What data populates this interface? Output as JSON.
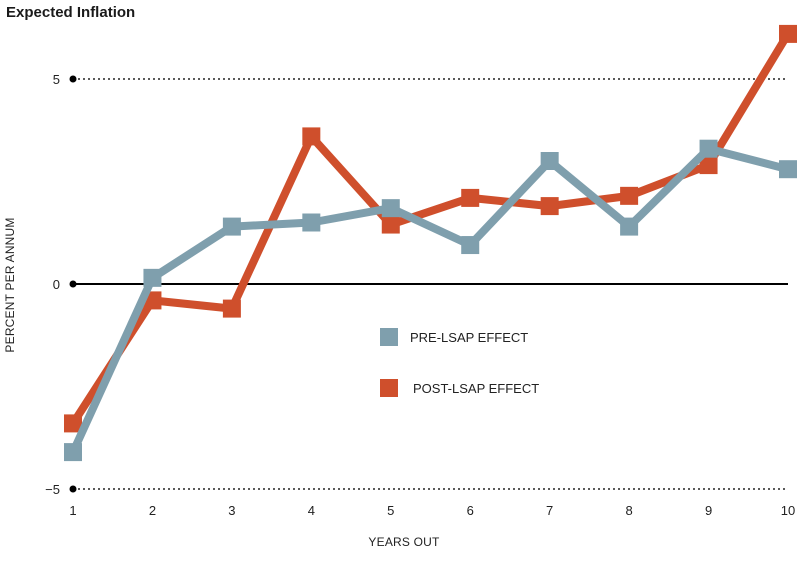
{
  "chart_data": {
    "type": "line",
    "title": "Expected Inflation",
    "xlabel": "YEARS OUT",
    "ylabel": "PERCENT PER ANNUM",
    "x": [
      1,
      2,
      3,
      4,
      5,
      6,
      7,
      8,
      9,
      10
    ],
    "x_tick_labels": [
      "1",
      "2",
      "3",
      "4",
      "5",
      "6",
      "7",
      "8",
      "9",
      "10"
    ],
    "xlim": [
      1,
      10
    ],
    "ylim": [
      -5,
      5
    ],
    "y_ticks": [
      -5,
      0,
      5
    ],
    "y_tick_labels": [
      "−5",
      "0",
      "5"
    ],
    "grid": "dotted at y = -5 and 5; solid zero line",
    "legend_position": "center",
    "series": [
      {
        "name": "PRE-LSAP EFFECT",
        "color": "#7f9fad",
        "values": [
          -4.1,
          0.15,
          1.4,
          1.5,
          1.85,
          0.95,
          3.0,
          1.4,
          3.3,
          2.8
        ]
      },
      {
        "name": "POST-LSAP EFFECT",
        "color": "#cf4f2c",
        "values": [
          -3.4,
          -0.4,
          -0.6,
          3.6,
          1.45,
          2.1,
          1.9,
          2.15,
          2.9,
          6.1
        ]
      }
    ]
  }
}
